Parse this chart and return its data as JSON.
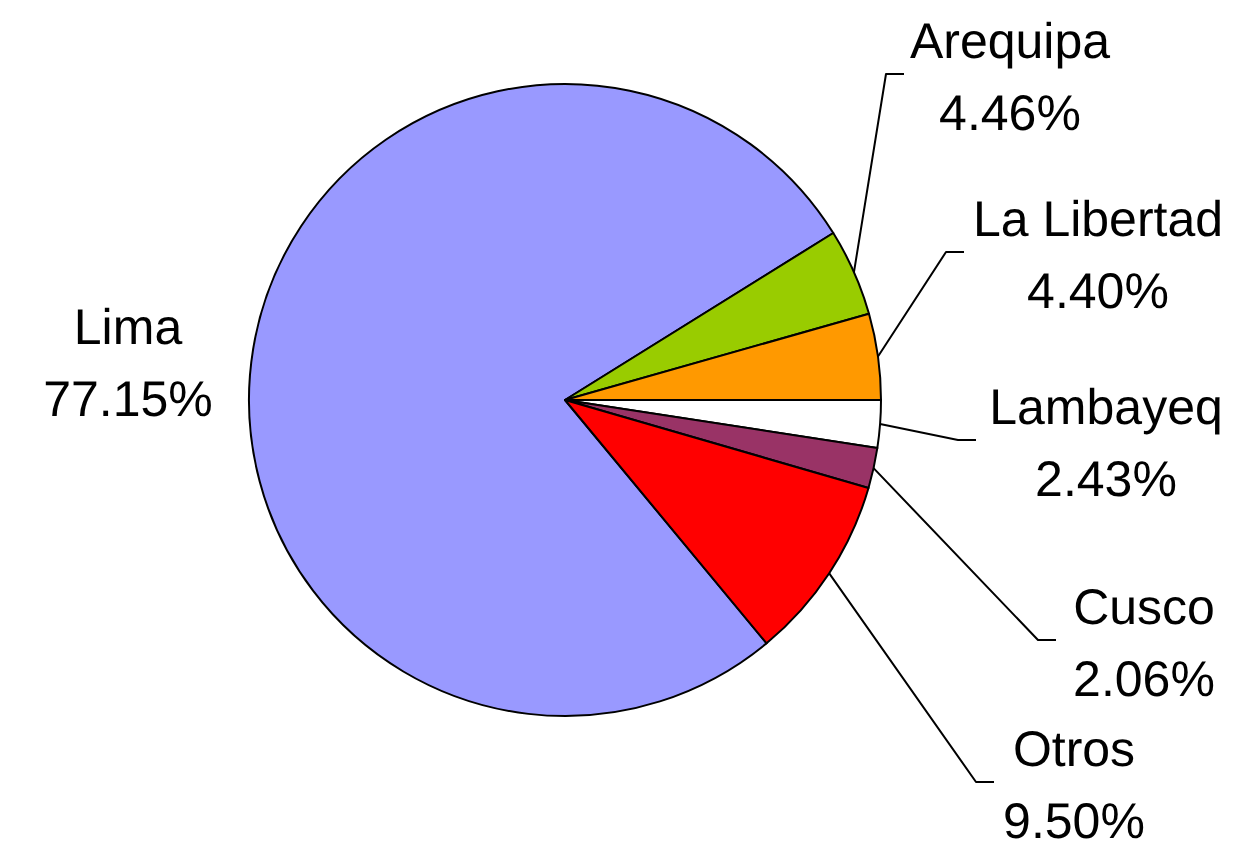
{
  "chart_data": {
    "type": "pie",
    "categories": [
      "Lima",
      "Arequipa",
      "La Libertad",
      "Lambayeq",
      "Cusco",
      "Otros"
    ],
    "values": [
      77.15,
      4.46,
      4.4,
      2.43,
      2.06,
      9.5
    ],
    "colors": [
      "#9999ff",
      "#99cc00",
      "#ff9900",
      "#ffffff",
      "#993366",
      "#ff0000"
    ],
    "value_labels": [
      "77.15%",
      "4.46%",
      "4.40%",
      "2.43%",
      "2.06%",
      "9.50%"
    ]
  }
}
